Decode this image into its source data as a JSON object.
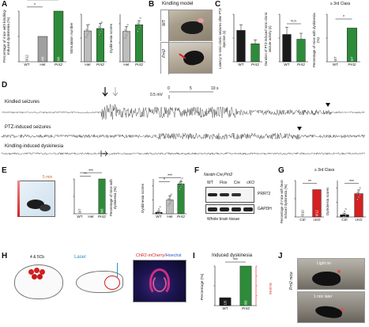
{
  "panels": {
    "A": {
      "letter": "A",
      "ylabel": "Percentage of mice with kindling-induced dyskinesia (%)",
      "bar_labels": [
        "0/12",
        "4/8",
        "6/6"
      ],
      "sig": [
        "*",
        "***"
      ],
      "chart2_ylabel": "Stimulation number",
      "chart3_ylabel": "Dyskinesia scores"
    },
    "B": {
      "letter": "B",
      "title": "Kindling model",
      "labels": [
        "WT",
        "Prrt2"
      ]
    },
    "C": {
      "letter": "C",
      "ylabel1": "Latency to tonic-clonic seizures after PTZ injection (s)",
      "ylabel2": "Duration of PTZ-induced tonic-clonic seizure activity (s)",
      "ylabel3": "Percentage of mice with dyskinesia (%)",
      "class_label": "≥ 3rd Class",
      "ns": "N.S.",
      "bar_labels": [
        "0/7",
        "5/7"
      ],
      "sig": "*"
    },
    "D": {
      "letter": "D",
      "traces": [
        "Kindled seizures",
        "PTZ-induced seizures",
        "Kindling-induced dyskinesia"
      ],
      "scale_mv": "0.5 mV",
      "scale_ticks": [
        "0",
        "5",
        "10 s"
      ]
    },
    "E": {
      "letter": "E",
      "time": "5 min",
      "ylabel1": "Percentage of mice with dyskinesia (%)",
      "ylabel2": "Dyskinesia scores",
      "bar_labels": [
        "0/7",
        "0/11",
        "8/8"
      ],
      "sig": [
        "**",
        "***",
        "*",
        "***"
      ]
    },
    "F": {
      "letter": "F",
      "title": "Nestin-Cre;Prrt2",
      "columns": [
        "WT",
        "Flox",
        "Cre",
        "cKO"
      ],
      "bands": [
        "PRRT2",
        "GAPDH"
      ],
      "caption": "Whole brain tissue"
    },
    "G": {
      "letter": "G",
      "class_label": "≥ 3rd Class",
      "ylabel1": "Percentage of mice with heat-induced dyskinesia (%)",
      "ylabel2": "Dyskinesia scores",
      "bar_labels": [
        "0/10",
        "9/12"
      ],
      "x_labels": [
        "Ctrl",
        "cKO"
      ],
      "sig": [
        "**",
        "***"
      ]
    },
    "H": {
      "letter": "H",
      "region": "4 & 5Cb",
      "laser": "Laser",
      "stain": "ChR2-mCherry/",
      "stain2": "Hoechst"
    },
    "I": {
      "letter": "I",
      "title": "Induced dyskinesia",
      "ylabel_left": "Percentage (%)",
      "ylabel_right": "Scores",
      "bar_labels": [
        "1/5",
        "8/8"
      ],
      "sig": "***"
    },
    "J": {
      "letter": "J",
      "light_on": "Light on",
      "later": "1 min later",
      "side_label": "Prrt2 mice"
    }
  },
  "colors": {
    "wt": "#1a1a1a",
    "het": "#a0a0a0",
    "prrt2": "#2e8b3a",
    "red": "#d42020",
    "gray_bar": "#bdbdbd"
  },
  "chart_data": [
    {
      "type": "bar",
      "categories": [
        "WT",
        "Het",
        "Prrt2"
      ],
      "values": [
        0,
        50,
        100
      ],
      "ylim": [
        0,
        100
      ]
    },
    {
      "type": "bar",
      "categories": [
        "Het",
        "Prrt2"
      ],
      "values": [
        13,
        14
      ],
      "ylim": [
        0,
        20
      ]
    },
    {
      "type": "bar",
      "categories": [
        "Het",
        "Prrt2"
      ],
      "values": [
        3.2,
        3.9
      ],
      "ylim": [
        0,
        5
      ]
    },
    {
      "type": "bar",
      "categories": [
        "WT",
        "Prrt2"
      ],
      "values": [
        330,
        190
      ],
      "ylim": [
        0,
        500
      ]
    },
    {
      "type": "bar",
      "categories": [
        "WT",
        "Prrt2"
      ],
      "values": [
        115,
        95
      ],
      "ylim": [
        0,
        200
      ]
    },
    {
      "type": "bar",
      "categories": [
        "WT",
        "Prrt2"
      ],
      "values": [
        0,
        71
      ],
      "ylim": [
        0,
        100
      ]
    },
    {
      "type": "bar",
      "categories": [
        "WT",
        "Het",
        "Prrt2"
      ],
      "values": [
        0,
        0,
        100
      ],
      "ylim": [
        0,
        100
      ]
    },
    {
      "type": "bar",
      "categories": [
        "WT",
        "Het",
        "Prrt2"
      ],
      "values": [
        0.2,
        2.0,
        4.3
      ],
      "ylim": [
        0,
        5
      ]
    },
    {
      "type": "bar",
      "categories": [
        "Ctrl",
        "cKO"
      ],
      "values": [
        0,
        75
      ],
      "ylim": [
        0,
        100
      ]
    },
    {
      "type": "bar",
      "categories": [
        "Ctrl",
        "cKO"
      ],
      "values": [
        0.3,
        3.2
      ],
      "ylim": [
        0,
        5
      ]
    },
    {
      "type": "bar",
      "categories": [
        "WT",
        "Prrt2"
      ],
      "values": [
        20,
        100
      ],
      "ylim": [
        0,
        100
      ]
    }
  ]
}
